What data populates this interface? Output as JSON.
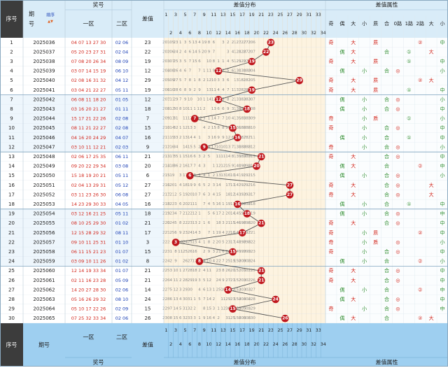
{
  "header": {
    "seq": "序号",
    "period_top": "期",
    "period_bottom": "号",
    "sort_label": "排序",
    "prize": "奖号",
    "zone1": "一区",
    "zone2": "二区",
    "diff": "差值",
    "dist": "差值分布",
    "attr": "差值属性",
    "attr_cols": [
      "奇",
      "偶",
      "大",
      "小",
      "质",
      "合",
      "0路",
      "1路",
      "2路",
      "大",
      "小"
    ]
  },
  "dist_top": [
    "1",
    "3",
    "5",
    "7",
    "9",
    "11",
    "13",
    "15",
    "17",
    "19",
    "21",
    "23",
    "25",
    "27",
    "29",
    "31",
    "33"
  ],
  "dist_bot": [
    "2",
    "4",
    "6",
    "8",
    "10",
    "12",
    "14",
    "16",
    "18",
    "20",
    "22",
    "24",
    "26",
    "28",
    "30",
    "32",
    "34"
  ],
  "rows": [
    {
      "seq": "1",
      "period": "2025036",
      "z1": "04 07 13 27 30",
      "z2": "02 06",
      "diff": "23",
      "attr": [
        "奇",
        "",
        "大",
        "",
        "质",
        "",
        "",
        "",
        "②",
        "",
        "中"
      ]
    },
    {
      "seq": "2",
      "period": "2025037",
      "z1": "05 20 23 27 31",
      "z2": "02 04",
      "diff": "22",
      "attr": [
        "",
        "偶",
        "大",
        "",
        "",
        "合",
        "",
        "①",
        "",
        "大",
        ""
      ]
    },
    {
      "seq": "3",
      "period": "2025038",
      "z1": "07 08 20 26 34",
      "z2": "08 09",
      "diff": "19",
      "attr": [
        "奇",
        "",
        "大",
        "",
        "质",
        "",
        "",
        "①",
        "",
        "",
        "中"
      ]
    },
    {
      "seq": "4",
      "period": "2025039",
      "z1": "03 07 14 15 19",
      "z2": "06 10",
      "diff": "12",
      "attr": [
        "",
        "偶",
        "",
        "小",
        "",
        "合",
        "◎",
        "",
        "",
        "",
        "小"
      ]
    },
    {
      "seq": "5",
      "period": "2025040",
      "z1": "02 08 16 31 32",
      "z2": "04 12",
      "diff": "29",
      "attr": [
        "奇",
        "",
        "大",
        "",
        "质",
        "",
        "",
        "",
        "②",
        "大",
        ""
      ]
    },
    {
      "seq": "6",
      "period": "2025041",
      "z1": "03 04 21 22 27",
      "z2": "05 11",
      "diff": "19",
      "attr": [
        "奇",
        "",
        "大",
        "",
        "质",
        "",
        "",
        "①",
        "",
        "",
        "中"
      ]
    },
    {
      "seq": "7",
      "period": "2025042",
      "z1": "06 08 11 18 20",
      "z2": "01 05",
      "diff": "12",
      "attr": [
        "",
        "偶",
        "",
        "小",
        "",
        "合",
        "◎",
        "",
        "",
        "",
        "小"
      ]
    },
    {
      "seq": "8",
      "period": "2025043",
      "z1": "03 16 20 21 27",
      "z2": "01 11",
      "diff": "18",
      "attr": [
        "",
        "偶",
        "",
        "小",
        "",
        "合",
        "◎",
        "",
        "",
        "",
        "中"
      ]
    },
    {
      "seq": "9",
      "period": "2025044",
      "z1": "15 17 21 22 26",
      "z2": "02 08",
      "diff": "7",
      "attr": [
        "奇",
        "",
        "",
        "小",
        "质",
        "",
        "",
        "①",
        "",
        "",
        "小"
      ]
    },
    {
      "seq": "10",
      "period": "2025045",
      "z1": "08 11 21 22 27",
      "z2": "02 08",
      "diff": "15",
      "attr": [
        "奇",
        "",
        "",
        "小",
        "",
        "合",
        "◎",
        "",
        "",
        "",
        "中"
      ]
    },
    {
      "seq": "11",
      "period": "2025046",
      "z1": "04 16 20 24 29",
      "z2": "04 07",
      "diff": "16",
      "attr": [
        "",
        "偶",
        "",
        "小",
        "",
        "合",
        "",
        "①",
        "",
        "",
        "中"
      ]
    },
    {
      "seq": "12",
      "period": "2025047",
      "z1": "03 10 11 12 21",
      "z2": "02 03",
      "diff": "9",
      "attr": [
        "奇",
        "",
        "",
        "小",
        "",
        "合",
        "◎",
        "",
        "",
        "",
        "小"
      ]
    },
    {
      "seq": "13",
      "period": "2025048",
      "z1": "02 06 17 25 35",
      "z2": "06 11",
      "diff": "21",
      "attr": [
        "奇",
        "",
        "大",
        "",
        "",
        "合",
        "◎",
        "",
        "",
        "",
        "中"
      ]
    },
    {
      "seq": "14",
      "period": "2025049",
      "z1": "09 20 22 29 34",
      "z2": "03 08",
      "diff": "20",
      "attr": [
        "",
        "偶",
        "大",
        "",
        "",
        "合",
        "",
        "",
        "②",
        "",
        "中"
      ]
    },
    {
      "seq": "15",
      "period": "2025050",
      "z1": "15 18 19 20 21",
      "z2": "05 11",
      "diff": "6",
      "attr": [
        "",
        "偶",
        "",
        "小",
        "",
        "合",
        "◎",
        "",
        "",
        "",
        "小"
      ]
    },
    {
      "seq": "16",
      "period": "2025051",
      "z1": "02 04 13 29 31",
      "z2": "05 12",
      "diff": "27",
      "attr": [
        "奇",
        "",
        "大",
        "",
        "",
        "合",
        "◎",
        "",
        "",
        "大",
        ""
      ]
    },
    {
      "seq": "17",
      "period": "2025052",
      "z1": "03 11 23 26 30",
      "z2": "06 08",
      "diff": "27",
      "attr": [
        "奇",
        "",
        "大",
        "",
        "",
        "合",
        "◎",
        "",
        "",
        "大",
        ""
      ]
    },
    {
      "seq": "18",
      "period": "2025053",
      "z1": "14 23 29 30 33",
      "z2": "04 05",
      "diff": "16",
      "attr": [
        "",
        "偶",
        "",
        "小",
        "",
        "合",
        "",
        "①",
        "",
        "",
        "中"
      ]
    },
    {
      "seq": "19",
      "period": "2025054",
      "z1": "03 12 16 21 25",
      "z2": "05 11",
      "diff": "18",
      "attr": [
        "",
        "偶",
        "",
        "小",
        "",
        "合",
        "◎",
        "",
        "",
        "",
        "中"
      ]
    },
    {
      "seq": "20",
      "period": "2025055",
      "z1": "08 10 25 29 30",
      "z2": "01 02",
      "diff": "21",
      "attr": [
        "奇",
        "",
        "大",
        "",
        "",
        "合",
        "◎",
        "",
        "",
        "",
        "中"
      ]
    },
    {
      "seq": "21",
      "period": "2025056",
      "z1": "12 15 28 29 32",
      "z2": "08 11",
      "diff": "17",
      "attr": [
        "奇",
        "",
        "",
        "小",
        "质",
        "",
        "",
        "",
        "②",
        "",
        "中"
      ]
    },
    {
      "seq": "22",
      "period": "2025057",
      "z1": "09 10 11 25 31",
      "z2": "01 10",
      "diff": "3",
      "attr": [
        "奇",
        "",
        "",
        "小",
        "质",
        "",
        "◎",
        "",
        "",
        "",
        "小"
      ]
    },
    {
      "seq": "23",
      "period": "2025058",
      "z1": "06 11 15 21 23",
      "z2": "01 07",
      "diff": "15",
      "attr": [
        "奇",
        "",
        "",
        "小",
        "",
        "合",
        "◎",
        "",
        "",
        "",
        "中"
      ]
    },
    {
      "seq": "24",
      "period": "2025059",
      "z1": "03 09 10 11 26",
      "z2": "01 02",
      "diff": "8",
      "attr": [
        "",
        "偶",
        "",
        "小",
        "",
        "合",
        "",
        "",
        "②",
        "",
        "小"
      ]
    },
    {
      "seq": "25",
      "period": "2025060",
      "z1": "12 14 19 33 34",
      "z2": "01 07",
      "diff": "21",
      "attr": [
        "奇",
        "",
        "大",
        "",
        "",
        "合",
        "◎",
        "",
        "",
        "",
        "中"
      ]
    },
    {
      "seq": "26",
      "period": "2025061",
      "z1": "02 11 16 23 28",
      "z2": "05 09",
      "diff": "21",
      "attr": [
        "奇",
        "",
        "大",
        "",
        "",
        "合",
        "◎",
        "",
        "",
        "",
        "中"
      ]
    },
    {
      "seq": "27",
      "period": "2025062",
      "z1": "14 20 27 28 30",
      "z2": "02 06",
      "diff": "14",
      "attr": [
        "",
        "偶",
        "",
        "小",
        "",
        "合",
        "",
        "",
        "②",
        "",
        "中"
      ]
    },
    {
      "seq": "28",
      "period": "2025063",
      "z1": "05 16 26 29 32",
      "z2": "08 10",
      "diff": "24",
      "attr": [
        "",
        "偶",
        "大",
        "",
        "",
        "合",
        "◎",
        "",
        "",
        "",
        "中"
      ]
    },
    {
      "seq": "29",
      "period": "2025064",
      "z1": "05 10 17 22 26",
      "z2": "02 09",
      "diff": "15",
      "attr": [
        "奇",
        "",
        "",
        "小",
        "",
        "合",
        "◎",
        "",
        "",
        "",
        "中"
      ]
    },
    {
      "seq": "30",
      "period": "2025065",
      "z1": "07 25 32 33 34",
      "z2": "02 06",
      "diff": "26",
      "attr": [
        "",
        "偶",
        "大",
        "",
        "",
        "合",
        "",
        "",
        "②",
        "大",
        ""
      ]
    }
  ],
  "omissions": [
    [
      "201",
      "105",
      "23",
      "1",
      "3",
      "5",
      "13",
      "4",
      "19",
      "8",
      "6",
      "",
      "3",
      "2",
      "2",
      "127",
      "127",
      "271",
      "206"
    ],
    [
      "202",
      "106",
      "24",
      "2",
      "4",
      "6",
      "14",
      "5",
      "20",
      "9",
      "7",
      "",
      "",
      "3",
      "4",
      "128",
      "128",
      "272",
      "207"
    ],
    [
      "203",
      "107",
      "25",
      "3",
      "5",
      "7",
      "15",
      "6",
      "",
      "10",
      "8",
      "1",
      "1",
      "4",
      "5",
      "129",
      "129",
      "273",
      "208"
    ],
    [
      "204",
      "108",
      "26",
      "4",
      "6",
      "7",
      "",
      "7",
      "1",
      "11",
      "9",
      "2",
      "2",
      "5",
      "6",
      "130",
      "130",
      "180",
      "204"
    ],
    [
      "205",
      "109",
      "27",
      "5",
      "7",
      "8",
      "1",
      "8",
      "2",
      "12",
      "10",
      "3",
      "3",
      "6",
      "",
      "131",
      "181",
      "281",
      "205"
    ],
    [
      "206",
      "110",
      "28",
      "6",
      "8",
      "9",
      "2",
      "9",
      "",
      "13",
      "11",
      "4",
      "4",
      "7",
      "1",
      "132",
      "182",
      "282",
      "206"
    ],
    [
      "207",
      "111",
      "29",
      "7",
      "9",
      "10",
      "",
      "10",
      "1",
      "14",
      "12",
      "5",
      "5",
      "8",
      "2",
      "133",
      "183",
      "283",
      "207"
    ],
    [
      "208",
      "112",
      "30",
      "8",
      "10",
      "11",
      "1",
      "11",
      "2",
      "",
      "13",
      "6",
      "6",
      "9",
      "3",
      "134",
      "184",
      "284",
      "208"
    ],
    [
      "209",
      "113",
      "31",
      "",
      "11",
      "12",
      "2",
      "12",
      "3",
      "1",
      "14",
      "7",
      "7",
      "10",
      "4",
      "135",
      "185",
      "285",
      "209"
    ],
    [
      "210",
      "114",
      "32",
      "1",
      "12",
      "13",
      "3",
      "",
      "4",
      "2",
      "15",
      "8",
      "8",
      "11",
      "5",
      "136",
      "186",
      "286",
      "210"
    ],
    [
      "211",
      "115",
      "33",
      "2",
      "13",
      "14",
      "4",
      "1",
      "",
      "3",
      "16",
      "9",
      "9",
      "12",
      "6",
      "137",
      "187",
      "287",
      "211"
    ],
    [
      "212",
      "116",
      "34",
      "",
      "14",
      "15",
      "5",
      "2",
      "1",
      "4",
      "17",
      "10",
      "10",
      "13",
      "7",
      "138",
      "188",
      "288",
      "212"
    ],
    [
      "213",
      "117",
      "35",
      "1",
      "15",
      "16",
      "6",
      "3",
      "2",
      "5",
      "",
      "11",
      "11",
      "14",
      "8",
      "139",
      "189",
      "289",
      "213"
    ],
    [
      "214",
      "118",
      "36",
      "2",
      "16",
      "17",
      "7",
      "4",
      "3",
      "",
      "1",
      "12",
      "12",
      "15",
      "9",
      "140",
      "190",
      "290",
      "214"
    ],
    [
      "215",
      "119",
      "",
      "3",
      "17",
      "18",
      "8",
      "5",
      "4",
      "1",
      "2",
      "13",
      "13",
      "16",
      "10",
      "141",
      "191",
      "291",
      "215"
    ],
    [
      "216",
      "120",
      "1",
      "4",
      "18",
      "19",
      "9",
      "6",
      "5",
      "2",
      "3",
      "14",
      "",
      "17",
      "11",
      "142",
      "192",
      "292",
      "216"
    ],
    [
      "217",
      "121",
      "2",
      "5",
      "19",
      "20",
      "10",
      "7",
      "6",
      "3",
      "4",
      "15",
      "",
      "18",
      "12",
      "143",
      "193",
      "293",
      "217"
    ],
    [
      "218",
      "122",
      "3",
      "6",
      "20",
      "21",
      "11",
      "",
      "7",
      "4",
      "5",
      "16",
      "1",
      "19",
      "13",
      "144",
      "194",
      "294",
      "218"
    ],
    [
      "219",
      "123",
      "4",
      "7",
      "21",
      "22",
      "12",
      "1",
      "",
      "5",
      "6",
      "17",
      "2",
      "20",
      "14",
      "145",
      "195",
      "295",
      "219"
    ],
    [
      "220",
      "124",
      "5",
      "8",
      "22",
      "23",
      "13",
      "2",
      "1",
      "6",
      "",
      "18",
      "3",
      "21",
      "15",
      "146",
      "196",
      "296",
      "220"
    ],
    [
      "221",
      "125",
      "6",
      "9",
      "23",
      "24",
      "14",
      "3",
      "",
      "7",
      "1",
      "19",
      "4",
      "22",
      "16",
      "147",
      "197",
      "297",
      "221"
    ],
    [
      "222",
      "",
      "7",
      "10",
      "24",
      "25",
      "15",
      "4",
      "1",
      "8",
      "2",
      "20",
      "5",
      "23",
      "17",
      "148",
      "198",
      "298",
      "222"
    ],
    [
      "223",
      "1",
      "8",
      "11",
      "25",
      "26",
      "16",
      "",
      "2",
      "9",
      "3",
      "21",
      "6",
      "24",
      "18",
      "149",
      "199",
      "299",
      "223"
    ],
    [
      "224",
      "2",
      "9",
      "",
      "26",
      "27",
      "17",
      "1",
      "3",
      "10",
      "4",
      "22",
      "7",
      "25",
      "19",
      "150",
      "200",
      "300",
      "224"
    ],
    [
      "225",
      "3",
      "10",
      "1",
      "27",
      "28",
      "18",
      "2",
      "4",
      "11",
      "",
      "23",
      "8",
      "26",
      "20",
      "151",
      "201",
      "301",
      "225"
    ],
    [
      "226",
      "4",
      "11",
      "2",
      "28",
      "29",
      "19",
      "3",
      "5",
      "12",
      "",
      "24",
      "9",
      "27",
      "21",
      "152",
      "202",
      "302",
      "226"
    ],
    [
      "227",
      "5",
      "12",
      "3",
      "29",
      "30",
      "",
      "4",
      "6",
      "13",
      "1",
      "25",
      "10",
      "28",
      "22",
      "153",
      "203",
      "303",
      "227"
    ],
    [
      "228",
      "6",
      "13",
      "4",
      "30",
      "31",
      "1",
      "5",
      "7",
      "14",
      "2",
      "",
      "11",
      "29",
      "23",
      "154",
      "204",
      "304",
      "228"
    ],
    [
      "229",
      "7",
      "14",
      "5",
      "31",
      "32",
      "2",
      "",
      "8",
      "15",
      "3",
      "1",
      "12",
      "30",
      "24",
      "155",
      "205",
      "305",
      "229"
    ],
    [
      "230",
      "8",
      "15",
      "6",
      "32",
      "33",
      "3",
      "1",
      "9",
      "16",
      "4",
      "2",
      "",
      "31",
      "25",
      "156",
      "206",
      "306",
      "230"
    ]
  ],
  "footer": {
    "seq": "序号",
    "period": "期号",
    "zone1": "一区",
    "zone2": "二区",
    "prize": "奖号",
    "diff": "差值",
    "dist": "差值分布",
    "attr": "差值属性"
  },
  "colors": {
    "header_blue": "#d9ecf8",
    "dist_bg": "#fdf3e0",
    "ball": "#c0171e",
    "red_text": "#d2261c",
    "blue_text": "#1a3fb5",
    "footer_bg": "#9ecff0"
  }
}
